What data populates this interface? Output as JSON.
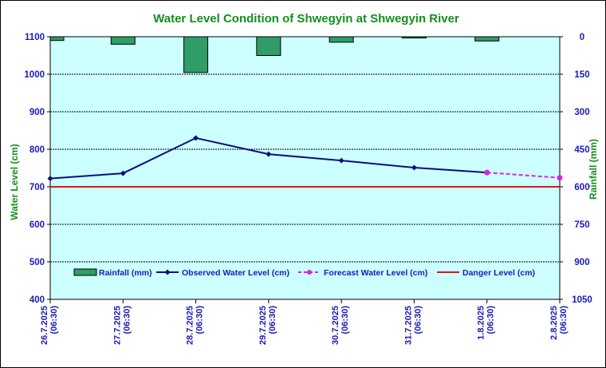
{
  "chart_data": {
    "type": "line+bar",
    "title": "Water Level Condition of Shwegyin at Shwegyin River",
    "ylabel": "Water Level (cm)",
    "y2label": "Rainfall (mm)",
    "ylim": [
      400,
      1100
    ],
    "yticks": [
      1100,
      1000,
      900,
      800,
      700,
      600,
      500,
      400
    ],
    "y2lim": [
      0,
      1050
    ],
    "y2ticks": [
      0,
      150,
      300,
      450,
      600,
      750,
      900,
      1050
    ],
    "x_dates": [
      "26.7.2025",
      "27.7.2025",
      "28.7.2025",
      "29.7.2025",
      "30.7.2025",
      "31.7.2025",
      "1.8.2025",
      "2.8.2025"
    ],
    "x_times": [
      "(06:30)",
      "(06:30)",
      "(06:30)",
      "(06:30)",
      "(06:30)",
      "(06:30)",
      "(06:30)",
      "(06:30)"
    ],
    "series": [
      {
        "name": "Rainfall (mm)",
        "kind": "bar",
        "axis": "right",
        "color": "#2e9d66",
        "x_index": [
          0,
          1,
          2,
          3,
          4,
          5,
          6
        ],
        "values": [
          15,
          30,
          143,
          75,
          22,
          5,
          17
        ]
      },
      {
        "name": "Observed Water Level (cm)",
        "kind": "line",
        "axis": "left",
        "color": "#0d0d7a",
        "x_index": [
          0,
          1,
          2,
          3,
          4,
          5,
          6
        ],
        "values": [
          722,
          736,
          830,
          787,
          770,
          751,
          738
        ]
      },
      {
        "name": "Forecast Water Level (cm)",
        "kind": "dashed-line",
        "axis": "left",
        "color": "#e020e0",
        "x_index": [
          6,
          7
        ],
        "values": [
          738,
          724
        ]
      },
      {
        "name": "Danger Level (cm)",
        "kind": "hline",
        "axis": "left",
        "color": "#d81818",
        "value": 700
      }
    ],
    "legend_position": "bottom-center",
    "grid": true
  }
}
